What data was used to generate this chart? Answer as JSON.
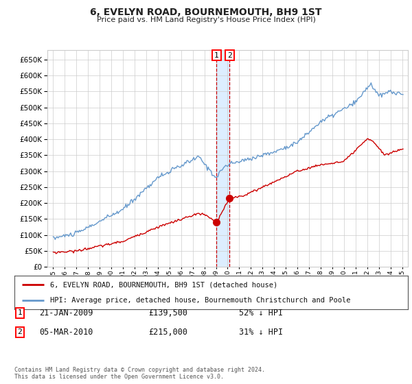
{
  "title": "6, EVELYN ROAD, BOURNEMOUTH, BH9 1ST",
  "subtitle": "Price paid vs. HM Land Registry's House Price Index (HPI)",
  "legend_red": "6, EVELYN ROAD, BOURNEMOUTH, BH9 1ST (detached house)",
  "legend_blue": "HPI: Average price, detached house, Bournemouth Christchurch and Poole",
  "footnote": "Contains HM Land Registry data © Crown copyright and database right 2024.\nThis data is licensed under the Open Government Licence v3.0.",
  "sale1_date": "21-JAN-2009",
  "sale1_price": "£139,500",
  "sale1_hpi": "52% ↓ HPI",
  "sale2_date": "05-MAR-2010",
  "sale2_price": "£215,000",
  "sale2_hpi": "31% ↓ HPI",
  "ylim": [
    0,
    680000
  ],
  "yticks": [
    0,
    50000,
    100000,
    150000,
    200000,
    250000,
    300000,
    350000,
    400000,
    450000,
    500000,
    550000,
    600000,
    650000
  ],
  "red_color": "#cc0000",
  "blue_color": "#6699cc",
  "highlight_color": "#ddeeff",
  "dashed_color": "#cc0000",
  "grid_color": "#cccccc",
  "bg_color": "#ffffff",
  "sale1_x_year": 2009.05,
  "sale2_x_year": 2010.17,
  "sale1_price_val": 139500,
  "sale2_price_val": 215000,
  "xlim_left": 1994.5,
  "xlim_right": 2025.5
}
